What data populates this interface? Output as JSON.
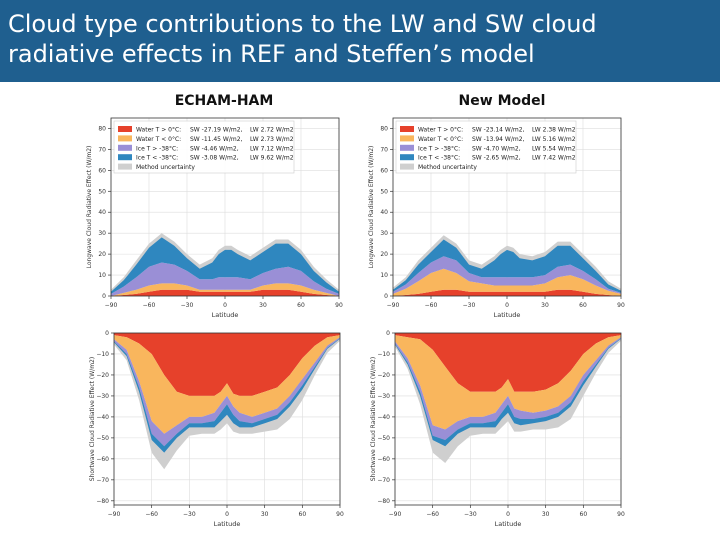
{
  "slide": {
    "title_line1": "Cloud type contributions to the LW and SW cloud",
    "title_line2": "radiative effects in REF and Steffen’s model"
  },
  "colors": {
    "banner": "#1f5f8f",
    "water_warm": "#e6412b",
    "water_cold": "#f9b65d",
    "ice_warm": "#9a8fd6",
    "ice_cold": "#2f87bf",
    "uncertainty": "#cfcfcf"
  },
  "chart_data": [
    {
      "type": "area",
      "id": "lw_echam",
      "column_title": "ECHAM-HAM",
      "xlabel": "Latitude",
      "ylabel": "Longwave Cloud Radiative Effect (W/m2)",
      "xlim": [
        -90,
        90
      ],
      "ylim": [
        0,
        85
      ],
      "xticks": [
        -90,
        -60,
        -30,
        0,
        30,
        60,
        90
      ],
      "yticks": [
        0,
        10,
        20,
        30,
        40,
        50,
        60,
        70,
        80
      ],
      "tick_labels_x": [
        "−90",
        "−60",
        "−30",
        "0",
        "30",
        "60",
        "90"
      ],
      "tick_labels_y": [
        "0",
        "10",
        "20",
        "30",
        "40",
        "50",
        "60",
        "70",
        "80"
      ],
      "legend": [
        {
          "label": "Water T > 0°C:",
          "sw": "SW -27.19 W/m2,",
          "lw": "LW 2.72 W/m2"
        },
        {
          "label": "Water T < 0°C:",
          "sw": "SW -11.45 W/m2,",
          "lw": "LW 2.73 W/m2"
        },
        {
          "label": "Ice T > -38°C:",
          "sw": "SW -4.46 W/m2,",
          "lw": "LW 7.12 W/m2"
        },
        {
          "label": "Ice T < -38°C:",
          "sw": "SW -3.08 W/m2,",
          "lw": "LW 9.62 W/m2"
        },
        {
          "label": "Method uncertainty",
          "sw": "",
          "lw": ""
        }
      ],
      "x": [
        -90,
        -80,
        -70,
        -60,
        -50,
        -40,
        -30,
        -20,
        -10,
        -5,
        0,
        5,
        10,
        20,
        30,
        40,
        50,
        60,
        70,
        80,
        90
      ],
      "series": [
        {
          "name": "Water T > 0°C",
          "values": [
            0,
            0.5,
            1,
            2,
            3,
            3,
            3,
            2,
            2,
            2,
            2,
            2,
            2,
            2,
            3,
            3,
            3,
            2,
            1,
            0.5,
            0
          ]
        },
        {
          "name": "Water T < 0°C",
          "values": [
            0,
            1,
            2,
            3,
            3,
            3,
            2,
            1,
            1,
            1,
            1,
            1,
            1,
            1,
            2,
            3,
            3,
            3,
            2,
            1,
            0
          ]
        },
        {
          "name": "Ice T > -38°C",
          "values": [
            1,
            3,
            6,
            9,
            10,
            9,
            7,
            5,
            5,
            6,
            6,
            6,
            6,
            5,
            6,
            7,
            8,
            7,
            4,
            2,
            1
          ]
        },
        {
          "name": "Ice T < -38°C",
          "values": [
            1,
            3,
            6,
            9,
            12,
            9,
            6,
            5,
            8,
            11,
            13,
            13,
            11,
            9,
            10,
            12,
            11,
            8,
            5,
            3,
            1
          ]
        }
      ],
      "uncertainty": [
        1,
        1.5,
        2,
        2,
        2,
        2,
        2,
        2,
        2,
        2,
        2,
        2,
        2,
        2,
        2,
        2,
        2,
        2,
        2,
        1.5,
        1
      ]
    },
    {
      "type": "area",
      "id": "lw_new",
      "column_title": "New Model",
      "xlabel": "Latitude",
      "ylabel": "Longwave Cloud Radiative Effect (W/m2)",
      "xlim": [
        -90,
        90
      ],
      "ylim": [
        0,
        85
      ],
      "xticks": [
        -90,
        -60,
        -30,
        0,
        30,
        60,
        90
      ],
      "yticks": [
        0,
        10,
        20,
        30,
        40,
        50,
        60,
        70,
        80
      ],
      "tick_labels_x": [
        "−90",
        "−60",
        "−30",
        "0",
        "30",
        "60",
        "90"
      ],
      "tick_labels_y": [
        "0",
        "10",
        "20",
        "30",
        "40",
        "50",
        "60",
        "70",
        "80"
      ],
      "legend": [
        {
          "label": "Water T > 0°C:",
          "sw": "SW -23.14 W/m2,",
          "lw": "LW 2.38 W/m2"
        },
        {
          "label": "Water T < 0°C:",
          "sw": "SW -13.94 W/m2,",
          "lw": "LW 5.16 W/m2"
        },
        {
          "label": "Ice T > -38°C:",
          "sw": "SW -4.70 W/m2,",
          "lw": "LW 5.54 W/m2"
        },
        {
          "label": "Ice T < -38°C:",
          "sw": "SW -2.65 W/m2,",
          "lw": "LW 7.42 W/m2"
        },
        {
          "label": "Method uncertainty",
          "sw": "",
          "lw": ""
        }
      ],
      "x": [
        -90,
        -80,
        -70,
        -60,
        -50,
        -40,
        -30,
        -20,
        -10,
        -5,
        0,
        5,
        10,
        20,
        30,
        40,
        50,
        60,
        70,
        80,
        90
      ],
      "series": [
        {
          "name": "Water T > 0°C",
          "values": [
            0,
            0.5,
            1,
            2,
            3,
            3,
            2,
            2,
            2,
            2,
            2,
            2,
            2,
            2,
            2,
            3,
            3,
            2,
            1,
            0.5,
            0
          ]
        },
        {
          "name": "Water T < 0°C",
          "values": [
            1,
            3,
            6,
            9,
            10,
            8,
            5,
            4,
            3,
            3,
            3,
            3,
            3,
            3,
            4,
            6,
            7,
            6,
            4,
            2,
            1
          ]
        },
        {
          "name": "Ice T > -38°C",
          "values": [
            1,
            2,
            4,
            5,
            6,
            6,
            4,
            3,
            4,
            4,
            4,
            4,
            4,
            4,
            4,
            5,
            5,
            4,
            3,
            1,
            0.5
          ]
        },
        {
          "name": "Ice T < -38°C",
          "values": [
            1,
            2,
            4,
            5,
            8,
            6,
            4,
            4,
            8,
            11,
            13,
            12,
            9,
            8,
            9,
            10,
            9,
            6,
            4,
            2,
            1
          ]
        }
      ],
      "uncertainty": [
        1,
        1.5,
        2,
        2,
        2,
        2,
        2,
        2,
        2,
        2,
        2,
        2,
        2,
        2,
        2,
        2,
        2,
        2,
        2,
        1.5,
        1
      ]
    },
    {
      "type": "area",
      "id": "sw_echam",
      "xlabel": "Latitude",
      "ylabel": "Shortwave Cloud Radiative Effect (W/m2)",
      "xlim": [
        -90,
        90
      ],
      "ylim": [
        -82,
        0
      ],
      "xticks": [
        -90,
        -60,
        -30,
        0,
        30,
        60,
        90
      ],
      "yticks": [
        0,
        -10,
        -20,
        -30,
        -40,
        -50,
        -60,
        -70,
        -80
      ],
      "tick_labels_x": [
        "−90",
        "−60",
        "−30",
        "0",
        "30",
        "60",
        "90"
      ],
      "tick_labels_y": [
        "0",
        "−10",
        "−20",
        "−30",
        "−40",
        "−50",
        "−60",
        "−70",
        "−80"
      ],
      "x": [
        -90,
        -80,
        -70,
        -60,
        -50,
        -40,
        -30,
        -20,
        -10,
        -5,
        0,
        5,
        10,
        20,
        30,
        40,
        50,
        60,
        70,
        80,
        90
      ],
      "series": [
        {
          "name": "Water T > 0°C",
          "values": [
            -1,
            -2,
            -5,
            -10,
            -20,
            -28,
            -30,
            -30,
            -30,
            -28,
            -24,
            -29,
            -30,
            -30,
            -28,
            -26,
            -20,
            -12,
            -6,
            -2,
            -1
          ]
        },
        {
          "name": "Water T < 0°C",
          "values": [
            -2,
            -6,
            -18,
            -32,
            -28,
            -16,
            -10,
            -10,
            -8,
            -6,
            -6,
            -6,
            -8,
            -10,
            -10,
            -10,
            -10,
            -10,
            -8,
            -4,
            -1
          ]
        },
        {
          "name": "Ice T > -38°C",
          "values": [
            -1,
            -2,
            -3,
            -6,
            -6,
            -4,
            -3,
            -3,
            -4,
            -4,
            -4,
            -4,
            -4,
            -3,
            -3,
            -3,
            -3,
            -3,
            -2,
            -1,
            -0.5
          ]
        },
        {
          "name": "Ice T < -38°C",
          "values": [
            -0.5,
            -1,
            -2,
            -3,
            -3,
            -2,
            -2,
            -2,
            -3,
            -4,
            -5,
            -4,
            -3,
            -2,
            -2,
            -2,
            -2,
            -2,
            -1,
            -0.5,
            -0.2
          ]
        }
      ],
      "uncertainty": [
        1,
        2,
        4,
        6,
        8,
        6,
        4,
        3,
        3,
        4,
        4,
        4,
        3,
        3,
        4,
        5,
        6,
        5,
        3,
        2,
        1
      ]
    },
    {
      "type": "area",
      "id": "sw_new",
      "xlabel": "Latitude",
      "ylabel": "Shortwave Cloud Radiative Effect (W/m2)",
      "xlim": [
        -90,
        90
      ],
      "ylim": [
        -82,
        0
      ],
      "xticks": [
        -90,
        -60,
        -30,
        0,
        30,
        60,
        90
      ],
      "yticks": [
        0,
        -10,
        -20,
        -30,
        -40,
        -50,
        -60,
        -70,
        -80
      ],
      "tick_labels_x": [
        "−90",
        "−60",
        "−30",
        "0",
        "30",
        "60",
        "90"
      ],
      "tick_labels_y": [
        "0",
        "−10",
        "−20",
        "−30",
        "−40",
        "−50",
        "−60",
        "−70",
        "−80"
      ],
      "x": [
        -90,
        -80,
        -70,
        -60,
        -50,
        -40,
        -30,
        -20,
        -10,
        -5,
        0,
        5,
        10,
        20,
        30,
        40,
        50,
        60,
        70,
        80,
        90
      ],
      "series": [
        {
          "name": "Water T > 0°C",
          "values": [
            -1,
            -2,
            -3,
            -8,
            -16,
            -24,
            -28,
            -28,
            -28,
            -26,
            -22,
            -28,
            -28,
            -28,
            -27,
            -24,
            -18,
            -10,
            -5,
            -2,
            -1
          ]
        },
        {
          "name": "Water T < 0°C",
          "values": [
            -3,
            -10,
            -22,
            -36,
            -30,
            -18,
            -12,
            -12,
            -10,
            -8,
            -8,
            -8,
            -9,
            -10,
            -10,
            -11,
            -12,
            -10,
            -8,
            -4,
            -1
          ]
        },
        {
          "name": "Ice T > -38°C",
          "values": [
            -1,
            -2,
            -3,
            -5,
            -5,
            -4,
            -3,
            -3,
            -4,
            -4,
            -4,
            -4,
            -4,
            -3,
            -3,
            -3,
            -3,
            -3,
            -2,
            -1,
            -0.5
          ]
        },
        {
          "name": "Ice T < -38°C",
          "values": [
            -0.5,
            -1,
            -2,
            -2,
            -3,
            -2,
            -2,
            -2,
            -3,
            -3,
            -4,
            -3,
            -3,
            -2,
            -2,
            -2,
            -2,
            -2,
            -1,
            -0.5,
            -0.2
          ]
        }
      ],
      "uncertainty": [
        1,
        2,
        4,
        6,
        8,
        6,
        4,
        3,
        3,
        4,
        4,
        4,
        3,
        3,
        4,
        5,
        6,
        5,
        3,
        2,
        1
      ]
    }
  ]
}
